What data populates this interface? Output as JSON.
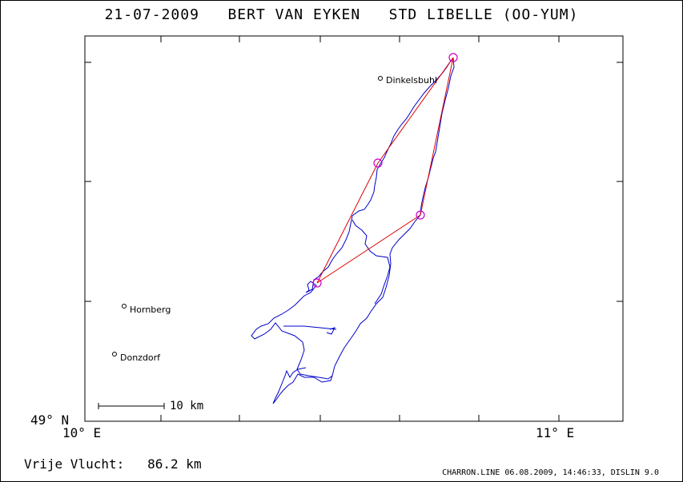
{
  "title": "21-07-2009   BERT VAN EYKEN   STD LIBELLE (OO-YUM)",
  "axis": {
    "y_label": "49° N",
    "x_label_left": "10° E",
    "x_label_right": "11° E"
  },
  "places": [
    {
      "name": "Dinkelsbuhl"
    },
    {
      "name": "Hornberg"
    },
    {
      "name": "Donzdorf"
    }
  ],
  "scale_bar": {
    "label": "10 km"
  },
  "footer": {
    "distance_label": "Vrije Vlucht:",
    "distance_value": "86.2 km",
    "credit": "CHARRON.LINE 06.08.2009, 14:46:33, DISLIN 9.0"
  },
  "colors": {
    "track": "#0000cc",
    "task": "#dd0000",
    "turnpoint": "#cc00cc",
    "axis": "#000000"
  }
}
